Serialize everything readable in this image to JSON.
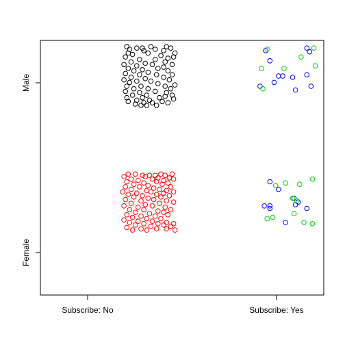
{
  "chart_data": {
    "type": "scatter",
    "title": "",
    "xlabel": "",
    "ylabel": "",
    "x_categories": [
      "Subscribe: No",
      "Subscribe: Yes"
    ],
    "y_categories": [
      "Female",
      "Male"
    ],
    "xlim": [
      0.25,
      2.25
    ],
    "ylim": [
      0.25,
      2.25
    ],
    "jitter": 0.25,
    "grid": false,
    "legend": "none",
    "marker": "open-circle",
    "series": [
      {
        "group": "Subscribe: No / Male",
        "color": "#000000",
        "points": [
          [
            0.86,
            2.2
          ],
          [
            0.93,
            2.19
          ],
          [
            0.97,
            2.19
          ],
          [
            1.03,
            2.2
          ],
          [
            1.14,
            2.2
          ],
          [
            1.17,
            2.19
          ],
          [
            0.88,
            2.18
          ],
          [
            1.06,
            2.18
          ],
          [
            1.12,
            2.17
          ],
          [
            0.98,
            2.17
          ],
          [
            0.87,
            2.15
          ],
          [
            1.01,
            2.15
          ],
          [
            1.2,
            2.15
          ],
          [
            0.9,
            2.14
          ],
          [
            1.1,
            2.13
          ],
          [
            1.19,
            2.12
          ],
          [
            0.85,
            2.12
          ],
          [
            0.95,
            2.1
          ],
          [
            1.06,
            2.1
          ],
          [
            1.15,
            2.11
          ],
          [
            0.89,
            2.08
          ],
          [
            0.99,
            2.07
          ],
          [
            1.13,
            2.08
          ],
          [
            0.84,
            2.06
          ],
          [
            0.93,
            2.05
          ],
          [
            1.04,
            2.06
          ],
          [
            1.18,
            2.06
          ],
          [
            0.87,
            2.03
          ],
          [
            0.97,
            2.02
          ],
          [
            1.08,
            2.03
          ],
          [
            1.12,
            2.04
          ],
          [
            0.91,
            2.01
          ],
          [
            1.01,
            2.0
          ],
          [
            1.15,
            2.01
          ],
          [
            0.85,
            1.99
          ],
          [
            0.95,
            1.98
          ],
          [
            1.07,
            1.98
          ],
          [
            1.18,
            1.98
          ],
          [
            0.89,
            1.96
          ],
          [
            0.99,
            1.95
          ],
          [
            1.12,
            1.96
          ],
          [
            0.84,
            1.94
          ],
          [
            0.93,
            1.93
          ],
          [
            1.03,
            1.93
          ],
          [
            1.16,
            1.94
          ],
          [
            0.88,
            1.92
          ],
          [
            1.08,
            1.91
          ],
          [
            1.2,
            1.9
          ],
          [
            0.86,
            1.89
          ],
          [
            0.96,
            1.89
          ],
          [
            1.13,
            1.89
          ],
          [
            0.91,
            1.87
          ],
          [
            1.01,
            1.87
          ],
          [
            1.17,
            1.87
          ],
          [
            0.85,
            1.85
          ],
          [
            0.95,
            1.84
          ],
          [
            1.06,
            1.85
          ],
          [
            1.14,
            1.84
          ],
          [
            0.9,
            1.82
          ],
          [
            1.0,
            1.82
          ],
          [
            1.18,
            1.82
          ],
          [
            0.86,
            1.8
          ],
          [
            0.97,
            1.8
          ],
          [
            1.09,
            1.8
          ],
          [
            1.13,
            1.81
          ],
          [
            0.93,
            1.78
          ],
          [
            1.02,
            1.78
          ],
          [
            1.19,
            1.79
          ],
          [
            0.87,
            1.77
          ],
          [
            0.98,
            1.76
          ],
          [
            1.11,
            1.77
          ],
          [
            0.92,
            1.75
          ],
          [
            1.04,
            1.76
          ],
          [
            0.96,
            1.74
          ],
          [
            1.0,
            1.74
          ],
          [
            1.07,
            1.74
          ],
          [
            1.15,
            1.76
          ]
        ]
      },
      {
        "group": "Subscribe: No / Female",
        "color": "#ff0000",
        "points": [
          [
            0.87,
            1.2
          ],
          [
            0.92,
            1.2
          ],
          [
            0.97,
            1.19
          ],
          [
            1.02,
            1.19
          ],
          [
            1.06,
            1.19
          ],
          [
            1.1,
            1.2
          ],
          [
            1.13,
            1.19
          ],
          [
            1.18,
            1.2
          ],
          [
            0.84,
            1.18
          ],
          [
            0.99,
            1.18
          ],
          [
            1.08,
            1.17
          ],
          [
            1.16,
            1.17
          ],
          [
            0.89,
            1.16
          ],
          [
            0.94,
            1.15
          ],
          [
            1.04,
            1.16
          ],
          [
            1.12,
            1.15
          ],
          [
            1.19,
            1.16
          ],
          [
            0.86,
            1.14
          ],
          [
            0.98,
            1.13
          ],
          [
            1.07,
            1.14
          ],
          [
            1.15,
            1.13
          ],
          [
            0.91,
            1.12
          ],
          [
            1.01,
            1.11
          ],
          [
            1.11,
            1.12
          ],
          [
            0.85,
            1.1
          ],
          [
            0.95,
            1.1
          ],
          [
            1.05,
            1.09
          ],
          [
            1.17,
            1.1
          ],
          [
            0.89,
            1.08
          ],
          [
            1.0,
            1.07
          ],
          [
            1.09,
            1.08
          ],
          [
            1.14,
            1.07
          ],
          [
            0.83,
            1.06
          ],
          [
            0.93,
            1.05
          ],
          [
            1.03,
            1.06
          ],
          [
            1.12,
            1.05
          ],
          [
            1.19,
            1.06
          ],
          [
            0.87,
            1.04
          ],
          [
            0.97,
            1.03
          ],
          [
            1.07,
            1.04
          ],
          [
            1.16,
            1.03
          ],
          [
            0.91,
            1.02
          ],
          [
            1.01,
            1.01
          ],
          [
            1.1,
            1.02
          ],
          [
            0.85,
            1.0
          ],
          [
            0.96,
            0.99
          ],
          [
            1.05,
            1.0
          ],
          [
            1.14,
            0.99
          ],
          [
            1.19,
            0.98
          ],
          [
            0.89,
            0.97
          ],
          [
            0.99,
            0.96
          ],
          [
            1.09,
            0.97
          ],
          [
            0.84,
            0.95
          ],
          [
            0.94,
            0.94
          ],
          [
            1.04,
            0.95
          ],
          [
            1.13,
            0.94
          ],
          [
            0.88,
            0.92
          ],
          [
            0.98,
            0.92
          ],
          [
            1.08,
            0.91
          ],
          [
            1.17,
            0.92
          ],
          [
            0.92,
            0.9
          ],
          [
            1.02,
            0.89
          ],
          [
            1.12,
            0.9
          ],
          [
            0.86,
            0.88
          ],
          [
            0.96,
            0.87
          ],
          [
            1.06,
            0.87
          ],
          [
            1.15,
            0.88
          ],
          [
            0.9,
            0.86
          ],
          [
            1.0,
            0.85
          ],
          [
            1.1,
            0.85
          ],
          [
            0.84,
            0.84
          ],
          [
            0.94,
            0.83
          ],
          [
            1.04,
            0.83
          ],
          [
            1.14,
            0.82
          ],
          [
            0.88,
            0.82
          ],
          [
            0.98,
            0.81
          ],
          [
            1.08,
            0.81
          ],
          [
            1.19,
            0.81
          ],
          [
            0.92,
            0.8
          ],
          [
            1.03,
            0.79
          ],
          [
            1.12,
            0.8
          ],
          [
            1.17,
            0.79
          ],
          [
            0.86,
            0.78
          ],
          [
            0.96,
            0.77
          ],
          [
            1.07,
            0.77
          ],
          [
            1.14,
            0.77
          ],
          [
            0.9,
            0.76
          ],
          [
            1.0,
            0.76
          ],
          [
            1.2,
            0.76
          ]
        ]
      },
      {
        "group": "Subscribe: Yes / Male (blue)",
        "color": "#0000ff",
        "points": [
          [
            1.84,
            2.17
          ],
          [
            2.13,
            2.19
          ],
          [
            1.87,
            2.09
          ],
          [
            2.15,
            2.16
          ],
          [
            1.93,
            1.97
          ],
          [
            1.96,
            1.97
          ],
          [
            2.13,
            1.98
          ],
          [
            1.9,
            1.92
          ],
          [
            1.8,
            1.89
          ],
          [
            2.03,
            1.96
          ],
          [
            2.16,
            1.89
          ],
          [
            2.05,
            1.86
          ]
        ]
      },
      {
        "group": "Subscribe: Yes / Male (green)",
        "color": "#00cd00",
        "points": [
          [
            1.85,
            2.18
          ],
          [
            2.18,
            2.19
          ],
          [
            2.09,
            2.12
          ],
          [
            1.81,
            2.03
          ],
          [
            1.97,
            2.03
          ],
          [
            2.19,
            2.05
          ],
          [
            1.82,
            1.87
          ]
        ]
      },
      {
        "group": "Subscribe: Yes / Female (blue)",
        "color": "#0000ff",
        "points": [
          [
            1.87,
            1.14
          ],
          [
            1.93,
            1.08
          ],
          [
            2.04,
            1.01
          ],
          [
            2.07,
            0.98
          ],
          [
            2.05,
            0.96
          ],
          [
            1.83,
            0.95
          ],
          [
            1.87,
            0.95
          ],
          [
            1.87,
            0.93
          ],
          [
            2.13,
            0.93
          ],
          [
            1.98,
            0.82
          ]
        ]
      },
      {
        "group": "Subscribe: Yes / Female (green)",
        "color": "#00cd00",
        "points": [
          [
            2.17,
            1.16
          ],
          [
            1.98,
            1.13
          ],
          [
            2.08,
            1.12
          ],
          [
            1.91,
            1.11
          ],
          [
            2.03,
            1.01
          ],
          [
            2.06,
            0.99
          ],
          [
            1.85,
            0.85
          ],
          [
            1.89,
            0.86
          ],
          [
            2.04,
            0.89
          ],
          [
            2.11,
            0.82
          ],
          [
            2.17,
            0.81
          ]
        ]
      }
    ]
  }
}
